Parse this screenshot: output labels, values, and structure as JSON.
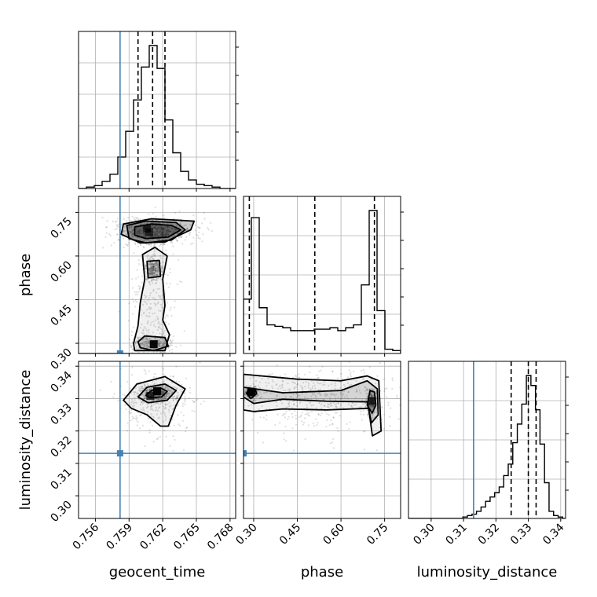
{
  "chart_data": {
    "type": "corner",
    "parameters": [
      {
        "key": "geocent_time",
        "label": "geocent_time",
        "range": [
          0.7545,
          0.7685
        ],
        "ticks": [
          0.756,
          0.759,
          0.762,
          0.765,
          0.768
        ],
        "tick_labels": [
          "0.756",
          "0.759",
          "0.762",
          "0.765",
          "0.768"
        ],
        "truth": 0.7582,
        "quantiles": [
          0.7598,
          0.7611,
          0.7622
        ]
      },
      {
        "key": "phase",
        "label": "phase",
        "range": [
          0.265,
          0.805
        ],
        "ticks": [
          0.3,
          0.45,
          0.6,
          0.75
        ],
        "tick_labels": [
          "0.30",
          "0.45",
          "0.60",
          "0.75"
        ],
        "truth": 0.265,
        "quantiles": [
          0.285,
          0.51,
          0.715
        ]
      },
      {
        "key": "luminosity_distance",
        "label": "luminosity_distance",
        "range": [
          0.293,
          0.3415
        ],
        "ticks": [
          0.3,
          0.31,
          0.32,
          0.33,
          0.34
        ],
        "tick_labels": [
          "0.30",
          "0.31",
          "0.32",
          "0.33",
          "0.34"
        ],
        "truth": 0.3131,
        "quantiles": [
          0.3247,
          0.33,
          0.3324
        ]
      }
    ],
    "histograms": [
      {
        "param": "geocent_time",
        "bin_edges": [
          0.7545,
          0.7552,
          0.7559,
          0.7566,
          0.7573,
          0.758,
          0.7587,
          0.7594,
          0.7601,
          0.7608,
          0.7615,
          0.7622,
          0.7629,
          0.7636,
          0.7643,
          0.765,
          0.7657,
          0.7664,
          0.7671,
          0.7678,
          0.7685
        ],
        "counts": [
          0.0,
          0.01,
          0.02,
          0.05,
          0.1,
          0.22,
          0.4,
          0.62,
          0.85,
          1.0,
          0.84,
          0.48,
          0.25,
          0.12,
          0.06,
          0.03,
          0.02,
          0.01,
          0.0,
          0.0
        ]
      },
      {
        "param": "phase",
        "bin_edges": [
          0.265,
          0.292,
          0.319,
          0.346,
          0.373,
          0.4,
          0.427,
          0.454,
          0.481,
          0.508,
          0.535,
          0.562,
          0.589,
          0.616,
          0.643,
          0.67,
          0.697,
          0.724,
          0.751,
          0.778,
          0.805
        ],
        "counts": [
          0.38,
          0.95,
          0.32,
          0.2,
          0.19,
          0.18,
          0.16,
          0.16,
          0.16,
          0.17,
          0.17,
          0.18,
          0.16,
          0.18,
          0.2,
          0.48,
          1.0,
          0.3,
          0.03,
          0.02
        ]
      },
      {
        "param": "luminosity_distance",
        "bin_edges": [
          0.293,
          0.2944,
          0.2958,
          0.2972,
          0.2986,
          0.3,
          0.3014,
          0.3028,
          0.3042,
          0.3056,
          0.307,
          0.3084,
          0.3098,
          0.3112,
          0.3126,
          0.314,
          0.3154,
          0.3168,
          0.3182,
          0.3196,
          0.321,
          0.3224,
          0.3238,
          0.3252,
          0.3266,
          0.328,
          0.3294,
          0.3308,
          0.3322,
          0.3336,
          0.335,
          0.3364,
          0.3378,
          0.3392,
          0.3406,
          0.3415
        ],
        "counts": [
          0,
          0,
          0,
          0,
          0,
          0,
          0,
          0,
          0,
          0,
          0,
          0,
          0.01,
          0.02,
          0.03,
          0.05,
          0.08,
          0.12,
          0.15,
          0.18,
          0.22,
          0.3,
          0.38,
          0.53,
          0.66,
          0.8,
          1.0,
          0.93,
          0.76,
          0.52,
          0.25,
          0.05,
          0.02,
          0.01,
          0
        ]
      }
    ],
    "contours_2d": [
      {
        "x": "geocent_time",
        "y": "phase",
        "levels": [
          [
            [
              0.7595,
              0.672
            ],
            [
              0.7605,
              0.66
            ],
            [
              0.7625,
              0.665
            ],
            [
              0.7636,
              0.69
            ],
            [
              0.7628,
              0.705
            ],
            [
              0.761,
              0.71
            ],
            [
              0.7595,
              0.7
            ]
          ],
          [
            [
              0.759,
              0.66
            ],
            [
              0.7605,
              0.645
            ],
            [
              0.7628,
              0.655
            ],
            [
              0.764,
              0.69
            ],
            [
              0.7632,
              0.715
            ],
            [
              0.7605,
              0.72
            ],
            [
              0.7588,
              0.705
            ]
          ],
          [
            [
              0.7583,
              0.675
            ],
            [
              0.76,
              0.645
            ],
            [
              0.7622,
              0.648
            ],
            [
              0.7645,
              0.69
            ],
            [
              0.7648,
              0.72
            ],
            [
              0.761,
              0.728
            ],
            [
              0.7585,
              0.71
            ]
          ],
          [
            [
              0.76,
              0.285
            ],
            [
              0.7612,
              0.275
            ],
            [
              0.7625,
              0.29
            ],
            [
              0.7622,
              0.32
            ],
            [
              0.7604,
              0.325
            ],
            [
              0.7598,
              0.305
            ]
          ],
          [
            [
              0.7607,
              0.525
            ],
            [
              0.7618,
              0.53
            ],
            [
              0.7617,
              0.585
            ],
            [
              0.7606,
              0.582
            ]
          ],
          [
            [
              0.7595,
              0.275
            ],
            [
              0.7622,
              0.275
            ],
            [
              0.7626,
              0.33
            ],
            [
              0.762,
              0.38
            ],
            [
              0.7622,
              0.43
            ],
            [
              0.762,
              0.52
            ],
            [
              0.7624,
              0.6
            ],
            [
              0.7613,
              0.63
            ],
            [
              0.7602,
              0.605
            ],
            [
              0.7604,
              0.52
            ],
            [
              0.76,
              0.44
            ],
            [
              0.7598,
              0.36
            ],
            [
              0.7594,
              0.3
            ]
          ]
        ],
        "hot_spots": [
          [
            0.7606,
            0.695,
            0.55
          ],
          [
            0.7612,
            0.297,
            1.0
          ],
          [
            0.7608,
            0.682,
            0.4
          ]
        ]
      },
      {
        "x": "geocent_time",
        "y": "luminosity_distance",
        "levels": [
          [
            [
              0.7605,
              0.331
            ],
            [
              0.761,
              0.3325
            ],
            [
              0.7618,
              0.3333
            ],
            [
              0.7624,
              0.3322
            ],
            [
              0.7619,
              0.3305
            ],
            [
              0.7609,
              0.3302
            ]
          ],
          [
            [
              0.7598,
              0.3305
            ],
            [
              0.7606,
              0.3335
            ],
            [
              0.7622,
              0.3345
            ],
            [
              0.7632,
              0.3325
            ],
            [
              0.7624,
              0.3295
            ],
            [
              0.7607,
              0.3287
            ]
          ],
          [
            [
              0.7585,
              0.3295
            ],
            [
              0.7597,
              0.3345
            ],
            [
              0.7622,
              0.3368
            ],
            [
              0.764,
              0.333
            ],
            [
              0.7632,
              0.328
            ],
            [
              0.7625,
              0.3215
            ],
            [
              0.7618,
              0.3215
            ],
            [
              0.7606,
              0.325
            ],
            [
              0.7592,
              0.327
            ]
          ]
        ],
        "hot_spots": [
          [
            0.7615,
            0.3323,
            1.0
          ],
          [
            0.7609,
            0.3308,
            0.6
          ]
        ]
      },
      {
        "x": "phase",
        "y": "luminosity_distance",
        "levels": [
          [
            [
              0.275,
              0.3316
            ],
            [
              0.285,
              0.3332
            ],
            [
              0.305,
              0.333
            ],
            [
              0.31,
              0.3315
            ],
            [
              0.29,
              0.33
            ]
          ],
          [
            [
              0.69,
              0.328
            ],
            [
              0.7,
              0.3325
            ],
            [
              0.715,
              0.332
            ],
            [
              0.72,
              0.328
            ],
            [
              0.707,
              0.3255
            ]
          ],
          [
            [
              0.265,
              0.3335
            ],
            [
              0.4,
              0.3318
            ],
            [
              0.6,
              0.3325
            ],
            [
              0.69,
              0.3355
            ],
            [
              0.725,
              0.333
            ],
            [
              0.728,
              0.325
            ],
            [
              0.705,
              0.3225
            ],
            [
              0.69,
              0.329
            ],
            [
              0.55,
              0.3292
            ],
            [
              0.4,
              0.3298
            ],
            [
              0.3,
              0.3285
            ],
            [
              0.265,
              0.3305
            ]
          ],
          [
            [
              0.265,
              0.3375
            ],
            [
              0.45,
              0.336
            ],
            [
              0.6,
              0.3355
            ],
            [
              0.69,
              0.337
            ],
            [
              0.73,
              0.3355
            ],
            [
              0.738,
              0.32
            ],
            [
              0.708,
              0.3185
            ],
            [
              0.695,
              0.327
            ],
            [
              0.55,
              0.3265
            ],
            [
              0.4,
              0.3268
            ],
            [
              0.3,
              0.326
            ],
            [
              0.265,
              0.3265
            ]
          ]
        ],
        "hot_spots": [
          [
            0.292,
            0.332,
            1.0
          ],
          [
            0.707,
            0.3293,
            0.6
          ]
        ]
      }
    ]
  }
}
